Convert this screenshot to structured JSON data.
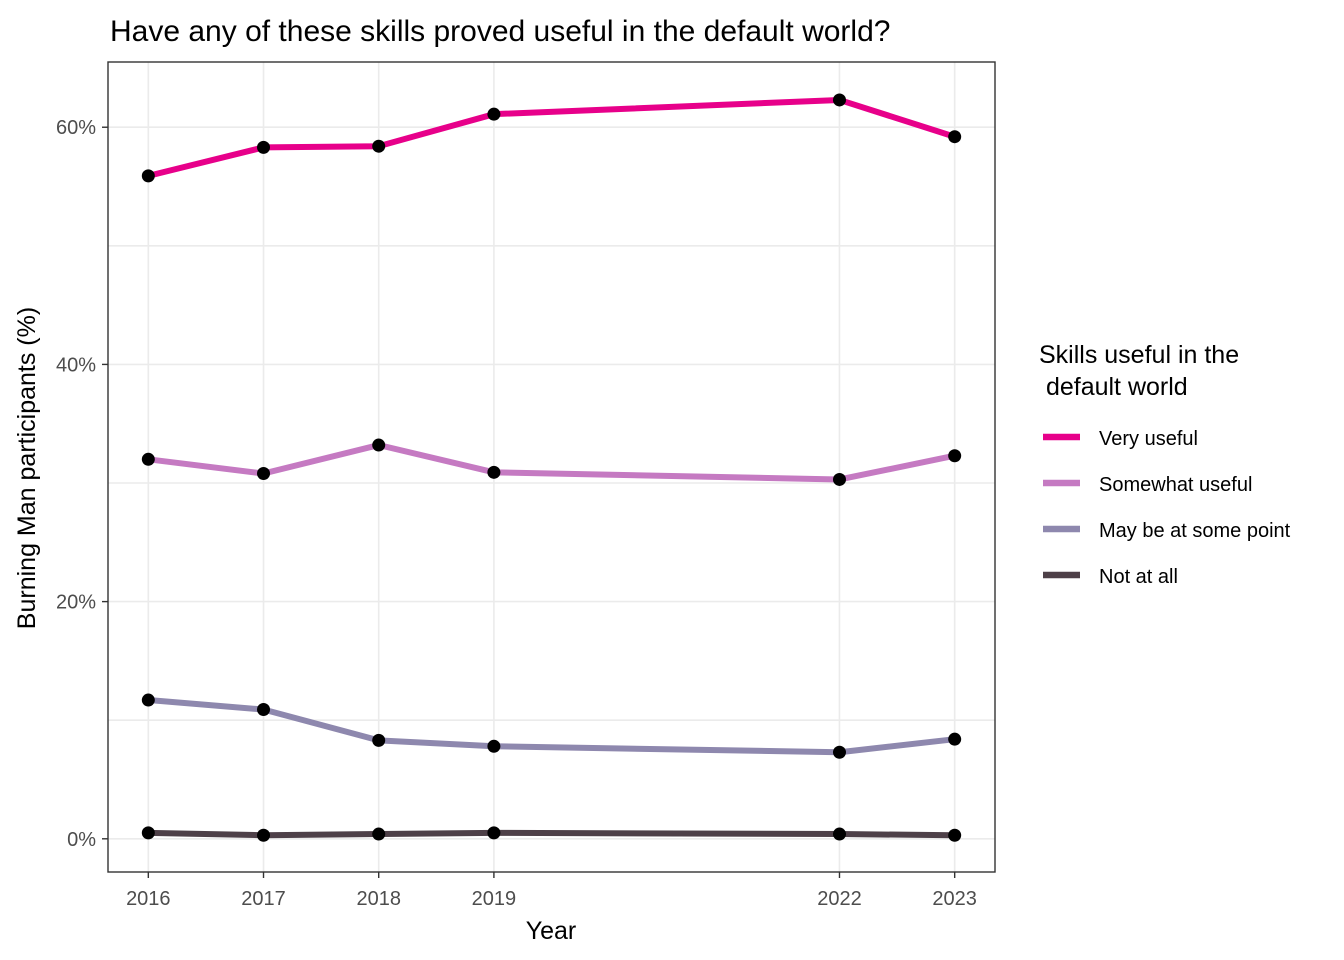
{
  "chart_data": {
    "type": "line",
    "title": "Have any of these skills proved useful in the default world?",
    "xlabel": "Year",
    "ylabel": "Burning Man participants (%)",
    "x": [
      2016,
      2017,
      2018,
      2019,
      2022,
      2023
    ],
    "x_tick_labels": [
      "2016",
      "2017",
      "2018",
      "2019",
      "2022",
      "2023"
    ],
    "y_ticks": [
      0,
      20,
      40,
      60
    ],
    "y_tick_labels": [
      "0%",
      "20%",
      "40%",
      "60%"
    ],
    "xlim": [
      2015.65,
      2023.35
    ],
    "ylim": [
      -2.8,
      65.5
    ],
    "grid": true,
    "legend_title_lines": [
      "Skills useful in the",
      " default world"
    ],
    "legend_position": "right",
    "series": [
      {
        "name": "Very useful",
        "color": "#e7008a",
        "values": [
          55.9,
          58.3,
          58.4,
          61.1,
          62.3,
          59.2
        ]
      },
      {
        "name": "Somewhat useful",
        "color": "#c57ac2",
        "values": [
          32.0,
          30.8,
          33.2,
          30.9,
          30.3,
          32.3
        ]
      },
      {
        "name": "May be at some point",
        "color": "#8e88ae",
        "values": [
          11.7,
          10.9,
          8.3,
          7.8,
          7.3,
          8.4
        ]
      },
      {
        "name": "Not at all",
        "color": "#4e4048",
        "values": [
          0.5,
          0.3,
          0.4,
          0.5,
          0.4,
          0.3
        ]
      }
    ]
  }
}
